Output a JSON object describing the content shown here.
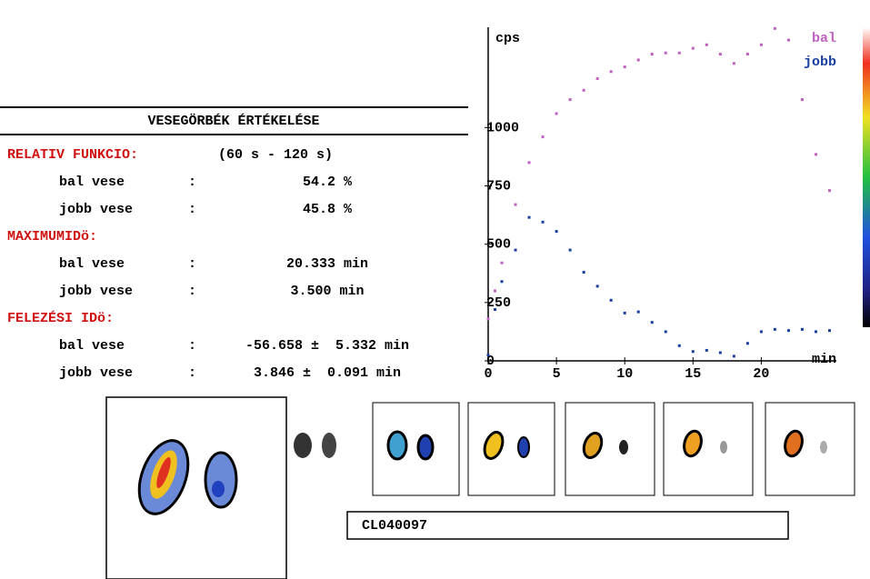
{
  "report": {
    "title": "VESEGÖRBÉK ÉRTÉKELÉSE",
    "sections": [
      {
        "heading": "RELATIV FUNKCIO:",
        "note": "(60 s - 120 s)",
        "rows": [
          [
            "bal vese",
            ":",
            "54.2 %"
          ],
          [
            "jobb vese",
            ":",
            "45.8 %"
          ]
        ]
      },
      {
        "heading": "MAXIMUMIDö:",
        "rows": [
          [
            "bal vese",
            ":",
            "20.333 min"
          ],
          [
            "jobb vese",
            ":",
            "3.500 min"
          ]
        ]
      },
      {
        "heading": "FELEZÉSI IDö:",
        "rows": [
          [
            "bal vese",
            ":",
            "-56.658 ±  5.332 min"
          ],
          [
            "jobb vese",
            ":",
            "3.846 ±  0.091 min"
          ]
        ]
      }
    ],
    "study_id": "CL040097"
  },
  "chart_data": {
    "type": "scatter",
    "y_label": "cps",
    "x_label": "min",
    "x": [
      0,
      0.5,
      1,
      2,
      3,
      4,
      5,
      6,
      7,
      8,
      9,
      10,
      11,
      12,
      13,
      14,
      15,
      16,
      17,
      18,
      19,
      20,
      21,
      22,
      23,
      24,
      25
    ],
    "series": [
      {
        "name": "bal",
        "color": "#c060c0",
        "values": [
          180,
          300,
          420,
          670,
          850,
          960,
          1060,
          1120,
          1160,
          1210,
          1240,
          1260,
          1290,
          1315,
          1320,
          1320,
          1340,
          1355,
          1315,
          1275,
          1315,
          1355,
          1425,
          1375,
          1120,
          885,
          730
        ]
      },
      {
        "name": "jobb",
        "color": "#1a3fa0",
        "values": [
          25,
          220,
          340,
          475,
          615,
          595,
          555,
          475,
          380,
          320,
          260,
          205,
          210,
          165,
          125,
          65,
          40,
          45,
          35,
          20,
          75,
          125,
          135,
          130,
          135,
          125,
          130
        ]
      }
    ],
    "xlim": [
      0,
      25.5
    ],
    "ylim": [
      0,
      1430
    ],
    "xticks": [
      0,
      5,
      10,
      15,
      20
    ],
    "yticks": [
      0,
      250,
      500,
      750,
      1000
    ],
    "legend": "top-right"
  }
}
